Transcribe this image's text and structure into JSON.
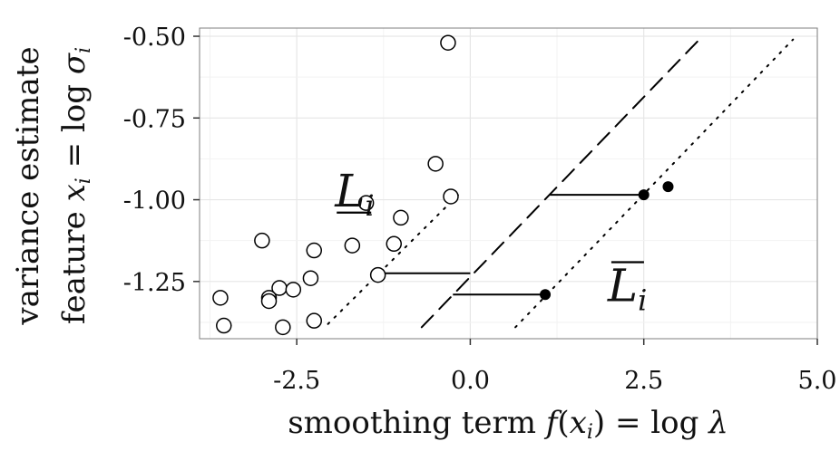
{
  "chart_data": {
    "type": "scatter",
    "title": "",
    "xlabel": "smoothing term f(x_i) = log λ",
    "ylabel": [
      "variance estimate",
      "feature x_i = log σ_i"
    ],
    "xlim": [
      -3.9,
      5.0
    ],
    "ylim": [
      -1.425,
      -0.475
    ],
    "xticks": [
      -2.5,
      0.0,
      2.5,
      5.0
    ],
    "xtick_labels": [
      "-2.5",
      "0.0",
      "2.5",
      "5.0"
    ],
    "yticks": [
      -0.5,
      -0.75,
      -1.0,
      -1.25
    ],
    "ytick_labels": [
      "-0.50",
      "-0.75",
      "-1.00",
      "-1.25"
    ],
    "grid": true,
    "series": [
      {
        "marker": "open-circle",
        "points": [
          [
            -0.32,
            -0.52
          ],
          [
            -0.5,
            -0.89
          ],
          [
            -0.28,
            -0.99
          ],
          [
            -1.5,
            -1.01
          ],
          [
            -1.0,
            -1.055
          ],
          [
            -1.1,
            -1.135
          ],
          [
            -1.7,
            -1.14
          ],
          [
            -3.0,
            -1.125
          ],
          [
            -2.25,
            -1.155
          ],
          [
            -1.33,
            -1.23
          ],
          [
            -2.3,
            -1.24
          ],
          [
            -2.75,
            -1.27
          ],
          [
            -2.55,
            -1.275
          ],
          [
            -2.9,
            -1.3
          ],
          [
            -2.9,
            -1.31
          ],
          [
            -3.6,
            -1.3
          ],
          [
            -3.55,
            -1.385
          ],
          [
            -2.7,
            -1.39
          ],
          [
            -2.25,
            -1.37
          ]
        ]
      },
      {
        "marker": "filled-circle",
        "points": [
          [
            2.85,
            -0.96
          ],
          [
            2.5,
            -0.985
          ],
          [
            1.08,
            -1.29
          ]
        ]
      }
    ],
    "lines": [
      {
        "style": "dashed",
        "from": [
          -0.7,
          -1.39
        ],
        "to": [
          3.3,
          -0.51
        ]
      },
      {
        "style": "dotted",
        "from": [
          -2.05,
          -1.38
        ],
        "to": [
          -0.15,
          -0.98
        ]
      },
      {
        "style": "dotted",
        "from": [
          0.65,
          -1.39
        ],
        "to": [
          4.65,
          -0.51
        ]
      }
    ],
    "segments": [
      {
        "from": [
          1.15,
          -0.985
        ],
        "to": [
          2.5,
          -0.985
        ]
      },
      {
        "from": [
          -1.33,
          -1.225
        ],
        "to": [
          0.0,
          -1.225
        ]
      },
      {
        "from": [
          -0.25,
          -1.29
        ],
        "to": [
          1.08,
          -1.29
        ]
      }
    ],
    "annotations": [
      {
        "text": "L_i",
        "bar": "under",
        "x": -1.95,
        "y": -1.02
      },
      {
        "text": "L_i",
        "bar": "over",
        "x": 1.98,
        "y": -1.31
      }
    ]
  }
}
